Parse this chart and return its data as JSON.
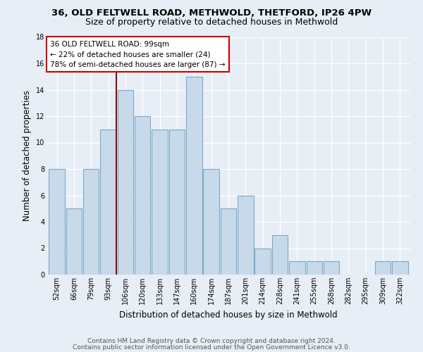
{
  "title1": "36, OLD FELTWELL ROAD, METHWOLD, THETFORD, IP26 4PW",
  "title2": "Size of property relative to detached houses in Methwold",
  "xlabel": "Distribution of detached houses by size in Methwold",
  "ylabel": "Number of detached properties",
  "bin_labels": [
    "52sqm",
    "66sqm",
    "79sqm",
    "93sqm",
    "106sqm",
    "120sqm",
    "133sqm",
    "147sqm",
    "160sqm",
    "174sqm",
    "187sqm",
    "201sqm",
    "214sqm",
    "228sqm",
    "241sqm",
    "255sqm",
    "268sqm",
    "282sqm",
    "295sqm",
    "309sqm",
    "322sqm"
  ],
  "bar_values": [
    8,
    5,
    8,
    11,
    14,
    12,
    11,
    11,
    15,
    8,
    5,
    6,
    2,
    3,
    1,
    1,
    1,
    0,
    0,
    1,
    1
  ],
  "bar_color": "#c8d9ea",
  "bar_edge_color": "#7aaac8",
  "subject_label": "36 OLD FELTWELL ROAD: 99sqm",
  "annotation_line1": "← 22% of detached houses are smaller (24)",
  "annotation_line2": "78% of semi-detached houses are larger (87) →",
  "vline_color": "#990000",
  "annotation_box_color": "#ffffff",
  "annotation_box_edge": "#cc0000",
  "footer1": "Contains HM Land Registry data © Crown copyright and database right 2024.",
  "footer2": "Contains public sector information licensed under the Open Government Licence v3.0.",
  "ylim": [
    0,
    18
  ],
  "yticks": [
    0,
    2,
    4,
    6,
    8,
    10,
    12,
    14,
    16,
    18
  ],
  "bg_color": "#e8eef6",
  "plot_bg_color": "#e8eef6",
  "title1_fontsize": 9.5,
  "title2_fontsize": 9.0,
  "ylabel_fontsize": 8.5,
  "xlabel_fontsize": 8.5,
  "tick_fontsize": 7.0,
  "footer_fontsize": 6.5
}
